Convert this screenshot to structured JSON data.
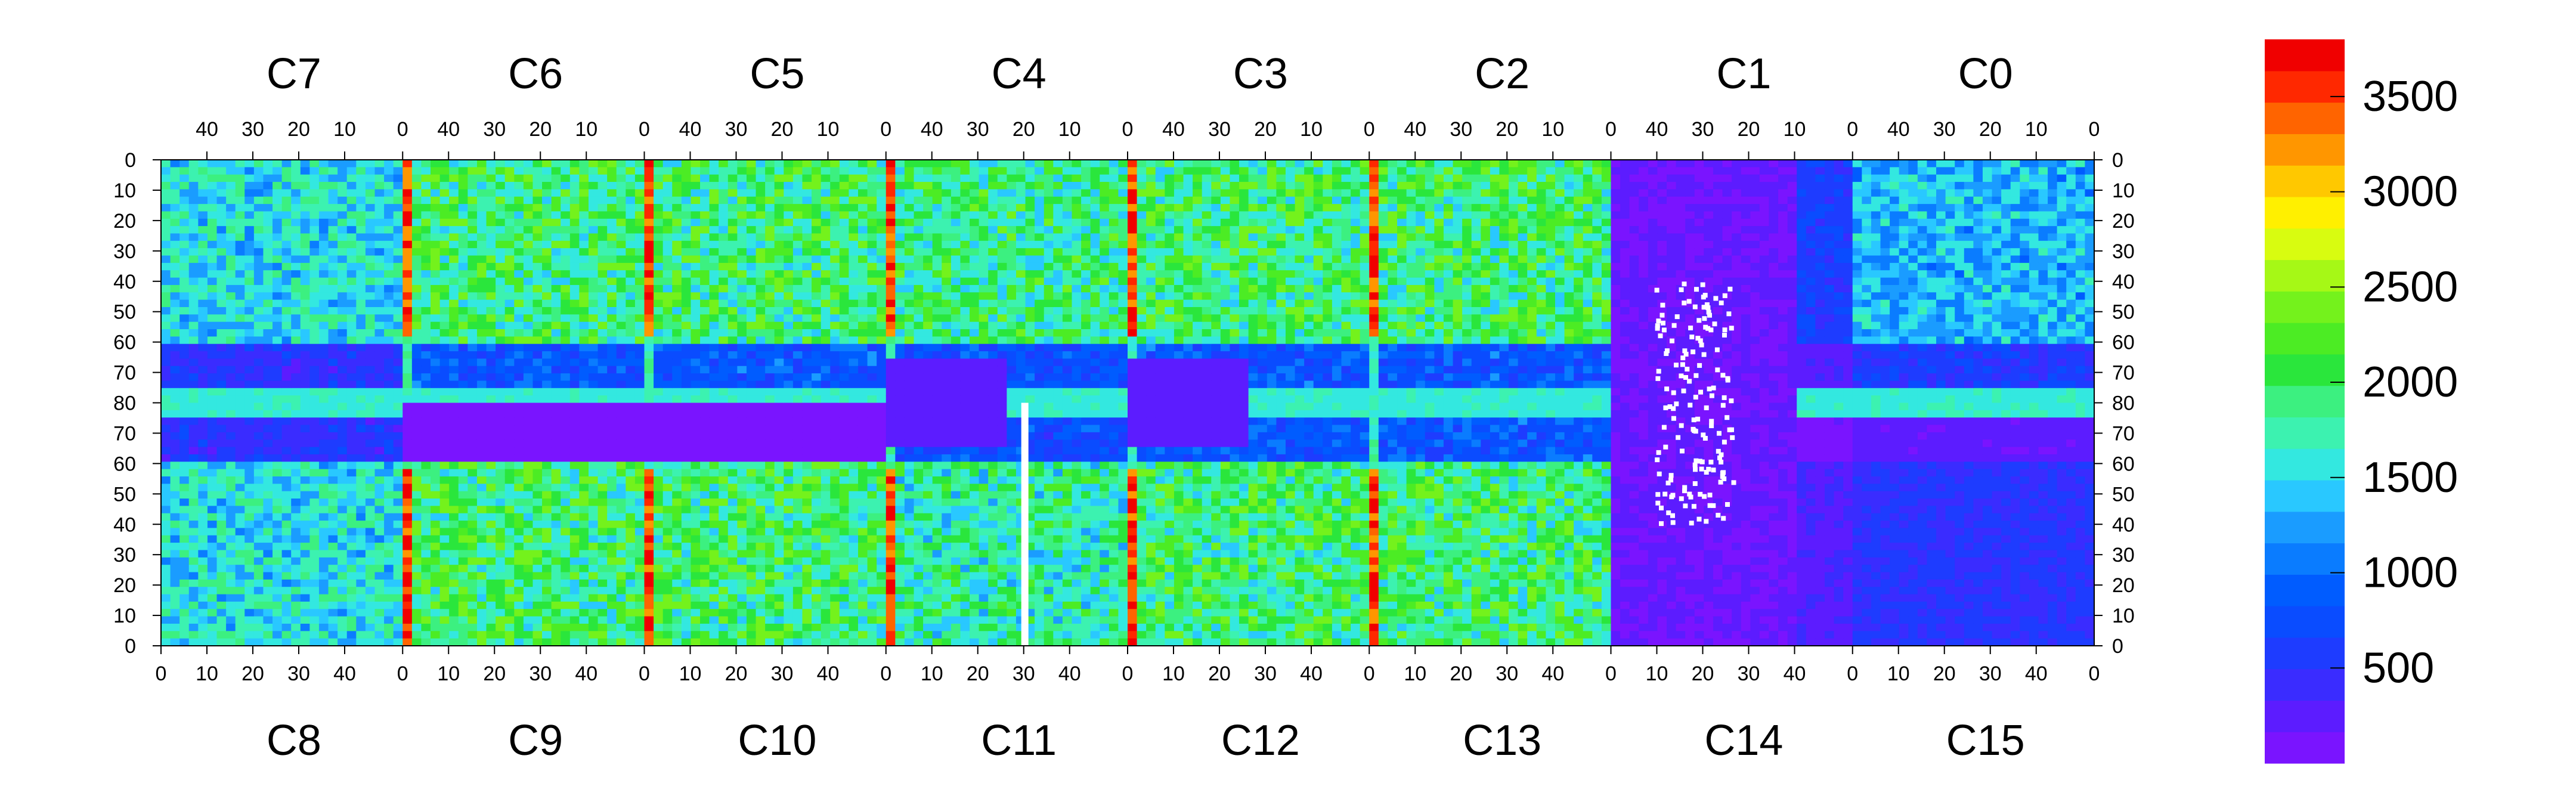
{
  "chart_data": {
    "type": "heatmap",
    "top_chip_labels": [
      "C7",
      "C6",
      "C5",
      "C4",
      "C3",
      "C2",
      "C1",
      "C0"
    ],
    "bottom_chip_labels": [
      "C8",
      "C9",
      "C10",
      "C11",
      "C12",
      "C13",
      "C14",
      "C15"
    ],
    "top_x_ticks": [
      "40",
      "30",
      "20",
      "10",
      "0"
    ],
    "bottom_x_ticks": [
      "0",
      "10",
      "20",
      "30",
      "40"
    ],
    "y_ticks": [
      "0",
      "10",
      "20",
      "30",
      "40",
      "50",
      "60",
      "70",
      "80",
      "70",
      "60",
      "50",
      "40",
      "30",
      "20",
      "10",
      "0"
    ],
    "colorbar": {
      "min": 0,
      "max": 3800,
      "tick_labels": [
        "500",
        "1000",
        "1500",
        "2000",
        "2500",
        "3000",
        "3500"
      ],
      "tick_values": [
        500,
        1000,
        1500,
        2000,
        2500,
        3000,
        3500
      ],
      "colors": [
        "#7a14ff",
        "#5c1cff",
        "#3a2cff",
        "#1e3cff",
        "#0a4cff",
        "#005cff",
        "#0a7cff",
        "#1a9cff",
        "#29c8ff",
        "#33e8e0",
        "#3cf2b0",
        "#3cf080",
        "#2ae63c",
        "#4cec24",
        "#74f21c",
        "#a6f816",
        "#d8fc10",
        "#fff000",
        "#ffc800",
        "#ff9600",
        "#ff6400",
        "#ff2800",
        "#f00000"
      ]
    },
    "chips": [
      {
        "name": "C7",
        "typical": 1500
      },
      {
        "name": "C6",
        "typical": 1900
      },
      {
        "name": "C5",
        "typical": 1900
      },
      {
        "name": "C4",
        "typical": 1800
      },
      {
        "name": "C3",
        "typical": 1900
      },
      {
        "name": "C2",
        "typical": 1900
      },
      {
        "name": "C1",
        "typical": 600
      },
      {
        "name": "C0",
        "typical": 1300
      },
      {
        "name": "C8",
        "typical": 1500
      },
      {
        "name": "C9",
        "typical": 1900
      },
      {
        "name": "C10",
        "typical": 1900
      },
      {
        "name": "C11",
        "typical": 1700
      },
      {
        "name": "C12",
        "typical": 1900
      },
      {
        "name": "C13",
        "typical": 1900
      },
      {
        "name": "C14",
        "typical": 300
      },
      {
        "name": "C15",
        "typical": 500
      }
    ]
  }
}
